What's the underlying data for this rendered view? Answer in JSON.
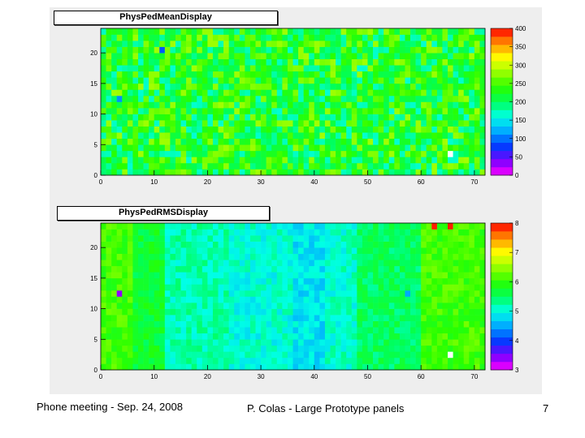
{
  "footer": {
    "left": "Phone meeting - Sep. 24, 2008",
    "center": "P. Colas - Large Prototype panels",
    "right": "7"
  },
  "colors": {
    "canvas": "#eeeeee",
    "frame": "#000000"
  },
  "chart_data": [
    {
      "type": "heatmap",
      "title": "PhysPedMeanDisplay",
      "xlabel": "",
      "ylabel": "",
      "xlim": [
        0,
        72
      ],
      "ylim": [
        0,
        24
      ],
      "x_ticks": [
        "0",
        "10",
        "20",
        "30",
        "40",
        "50",
        "60",
        "70"
      ],
      "y_ticks": [
        "0",
        "5",
        "10",
        "15",
        "20"
      ],
      "colorbar": {
        "min": 0,
        "max": 400,
        "ticks": [
          "0",
          "50",
          "100",
          "150",
          "200",
          "250",
          "300",
          "350",
          "400"
        ]
      },
      "grid": {
        "nx": 72,
        "ny": 24,
        "base_value": 225,
        "spread": 60,
        "seed": 11
      },
      "special_cells": [
        {
          "x": 65,
          "y": 3,
          "value": "empty"
        },
        {
          "x": 11,
          "y": 20,
          "value": 90
        },
        {
          "x": 3,
          "y": 12,
          "value": 110
        }
      ]
    },
    {
      "type": "heatmap",
      "title": "PhysPedRMSDisplay",
      "xlabel": "",
      "ylabel": "",
      "xlim": [
        0,
        72
      ],
      "ylim": [
        0,
        24
      ],
      "x_ticks": [
        "0",
        "10",
        "20",
        "30",
        "40",
        "50",
        "60",
        "70"
      ],
      "y_ticks": [
        "0",
        "5",
        "10",
        "15",
        "20"
      ],
      "colorbar": {
        "min": 3,
        "max": 8,
        "ticks": [
          "3",
          "4",
          "5",
          "6",
          "7",
          "8"
        ]
      },
      "grid": {
        "nx": 72,
        "ny": 24,
        "base_value": 5.6,
        "spread": 0.25,
        "seed": 29
      },
      "column_bands": [
        {
          "from": 0,
          "to": 6,
          "value": 6.1
        },
        {
          "from": 6,
          "to": 12,
          "value": 5.7
        },
        {
          "from": 12,
          "to": 24,
          "value": 5.2
        },
        {
          "from": 24,
          "to": 36,
          "value": 5.05
        },
        {
          "from": 36,
          "to": 42,
          "value": 4.85
        },
        {
          "from": 42,
          "to": 48,
          "value": 5.1
        },
        {
          "from": 48,
          "to": 60,
          "value": 5.5
        },
        {
          "from": 60,
          "to": 72,
          "value": 6.1
        }
      ],
      "special_cells": [
        {
          "x": 3,
          "y": 12,
          "value": 3.4
        },
        {
          "x": 57,
          "y": 12,
          "value": 4.5
        },
        {
          "x": 62,
          "y": 23,
          "value": 7.9
        },
        {
          "x": 65,
          "y": 23,
          "value": 7.9
        },
        {
          "x": 65,
          "y": 2,
          "value": "empty"
        }
      ]
    }
  ]
}
